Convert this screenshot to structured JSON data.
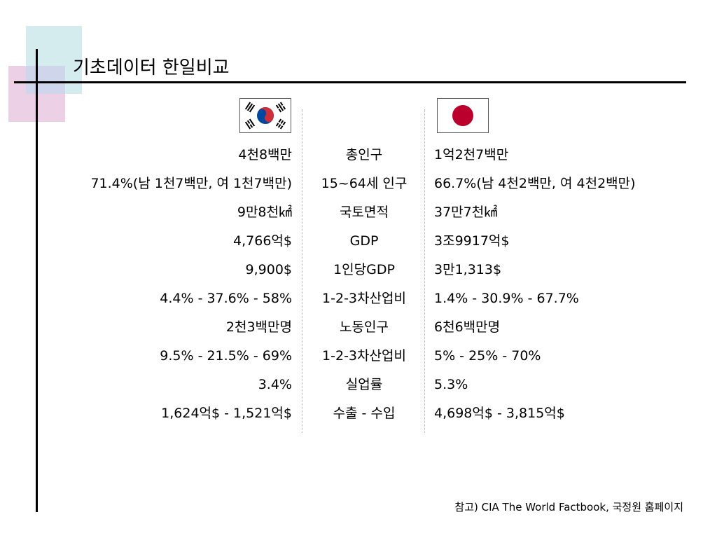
{
  "slide": {
    "title": "기초데이터 한일비교",
    "footnote": "참고) CIA The World Factbook, 국정원 홈페이지"
  },
  "colors": {
    "deco_cyan": "#d5ecee",
    "deco_pink": "#ecd1e6",
    "korea_red": "#cd2e3a",
    "korea_blue": "#0047a0",
    "japan_red": "#bc002d"
  },
  "flags": {
    "left": "flag-korea-icon",
    "right": "flag-japan-icon"
  },
  "rows": [
    {
      "korea": "4천8백만",
      "label": "총인구",
      "japan": "1억2천7백만"
    },
    {
      "korea": "71.4%(남 1천7백만, 여 1천7백만)",
      "label": "15~64세 인구",
      "japan": "66.7%(남 4천2백만, 여 4천2백만)"
    },
    {
      "korea": "9만8천㎢",
      "label": "국토면적",
      "japan": "37만7천㎢"
    },
    {
      "korea": "4,766억$",
      "label": "GDP",
      "japan": "3조9917억$"
    },
    {
      "korea": "9,900$",
      "label": "1인당GDP",
      "japan": "3만1,313$"
    },
    {
      "korea": "4.4% - 37.6% - 58%",
      "label": "1-2-3차산업비",
      "japan": "1.4% - 30.9% - 67.7%"
    },
    {
      "korea": "2천3백만명",
      "label": "노동인구",
      "japan": "6천6백만명"
    },
    {
      "korea": "9.5% - 21.5% - 69%",
      "label": "1-2-3차산업비",
      "japan": "5% - 25% - 70%"
    },
    {
      "korea": "3.4%",
      "label": "실업률",
      "japan": "5.3%"
    },
    {
      "korea": "1,624억$ - 1,521억$",
      "label": "수출 - 수입",
      "japan": "4,698억$ - 3,815억$"
    }
  ]
}
